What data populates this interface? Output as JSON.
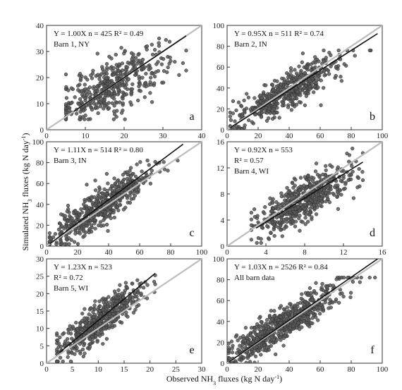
{
  "xlabel": "Observed NH3 fluxes (kg N day-1)",
  "ylabel": "Simulated NH3 fluxes (kg N day-1)",
  "chart_data": [
    {
      "type": "scatter",
      "letter": "a",
      "eq": "Y = 1.00X n = 425 R2 = 0.49",
      "eq_lines": [
        "Y = 1.00X n = 425 R² = 0.49"
      ],
      "label": "Barn 1, NY",
      "xlim": [
        0,
        40
      ],
      "ylim": [
        0,
        40
      ],
      "xticks": [
        0,
        10,
        20,
        30,
        40
      ],
      "yticks": [
        0,
        10,
        20,
        30,
        40
      ],
      "slope": 1.0,
      "n": 425,
      "r2": 0.49,
      "fit_x": [
        7,
        36
      ],
      "center": [
        17,
        17
      ],
      "spread": [
        7,
        7
      ],
      "rho": 0.7,
      "xrange": [
        5,
        36
      ],
      "yrange": [
        4,
        35
      ]
    },
    {
      "type": "scatter",
      "letter": "b",
      "eq": "Y = 0.95X n = 511 R2 = 0.74",
      "eq_lines": [
        "Y = 0.95X n = 511 R² = 0.74"
      ],
      "label": "Barn 2, IN",
      "xlim": [
        0,
        100
      ],
      "ylim": [
        0,
        100
      ],
      "xticks": [
        0,
        20,
        40,
        60,
        80,
        100
      ],
      "yticks": [
        0,
        20,
        40,
        60,
        80,
        100
      ],
      "slope": 0.95,
      "n": 511,
      "r2": 0.74,
      "fit_x": [
        2,
        97
      ],
      "center": [
        38,
        36
      ],
      "spread": [
        18,
        17
      ],
      "rho": 0.86,
      "xrange": [
        2,
        97
      ],
      "yrange": [
        1,
        76
      ]
    },
    {
      "type": "scatter",
      "letter": "c",
      "eq": "Y = 1.11X n = 514 R2 = 0.80",
      "eq_lines": [
        "Y = 1.11X n = 514 R² = 0.80"
      ],
      "label": "Barn 3, IN",
      "xlim": [
        0,
        100
      ],
      "ylim": [
        0,
        100
      ],
      "xticks": [
        0,
        20,
        40,
        60,
        80,
        100
      ],
      "yticks": [
        0,
        20,
        40,
        60,
        80,
        100
      ],
      "slope": 1.11,
      "n": 514,
      "r2": 0.8,
      "fit_x": [
        2,
        88
      ],
      "center": [
        35,
        38
      ],
      "spread": [
        17,
        19
      ],
      "rho": 0.89,
      "xrange": [
        2,
        90
      ],
      "yrange": [
        2,
        82
      ]
    },
    {
      "type": "scatter",
      "letter": "d",
      "eq": "Y = 0.92X n = 553 R2 = 0.57",
      "eq_lines": [
        "Y = 0.92X n = 553",
        "R² = 0.57"
      ],
      "label": "Barn 4, WI",
      "xlim": [
        0,
        16
      ],
      "ylim": [
        0,
        16
      ],
      "xticks": [
        0,
        4,
        8,
        12,
        16
      ],
      "yticks": [
        0,
        4,
        8,
        12,
        16
      ],
      "slope": 0.92,
      "n": 553,
      "r2": 0.57,
      "fit_x": [
        3,
        14
      ],
      "center": [
        7.8,
        7
      ],
      "spread": [
        2.5,
        2.6
      ],
      "rho": 0.75,
      "xrange": [
        2.5,
        14
      ],
      "yrange": [
        0.5,
        15
      ]
    },
    {
      "type": "scatter",
      "letter": "e",
      "eq": "Y = 1.23X n = 523 R2 = 0.72",
      "eq_lines": [
        "Y = 1.23X n = 523",
        "R² = 0.72"
      ],
      "label": "Barn 5, WI",
      "xlim": [
        0,
        30
      ],
      "ylim": [
        0,
        30
      ],
      "xticks": [
        0,
        5,
        10,
        15,
        20,
        25,
        30
      ],
      "yticks": [
        0,
        5,
        10,
        15,
        20,
        25,
        30
      ],
      "slope": 1.23,
      "n": 523,
      "r2": 0.72,
      "fit_x": [
        2.5,
        21
      ],
      "center": [
        10,
        12
      ],
      "spread": [
        4,
        5
      ],
      "rho": 0.85,
      "xrange": [
        2,
        21
      ],
      "yrange": [
        0.5,
        27
      ]
    },
    {
      "type": "scatter",
      "letter": "f",
      "eq": "Y = 1.03X n = 2526 R2 = 0.84",
      "eq_lines": [
        "Y = 1.03X n = 2526 R² = 0.84"
      ],
      "label": "All barn data",
      "xlim": [
        0,
        100
      ],
      "ylim": [
        0,
        100
      ],
      "xticks": [
        0,
        20,
        40,
        60,
        80,
        100
      ],
      "yticks": [
        0,
        20,
        40,
        60,
        80,
        100
      ],
      "slope": 1.03,
      "n": 2526,
      "r2": 0.84,
      "fit_x": [
        1,
        97
      ],
      "center": [
        35,
        36
      ],
      "spread": [
        19,
        19
      ],
      "rho": 0.9,
      "xrange": [
        1,
        97
      ],
      "yrange": [
        0.5,
        82
      ]
    }
  ],
  "colors": {
    "points": "#5a5a5a",
    "fit": "#111111",
    "one_to_one": "#bdbdbd",
    "axis": "#333333"
  }
}
